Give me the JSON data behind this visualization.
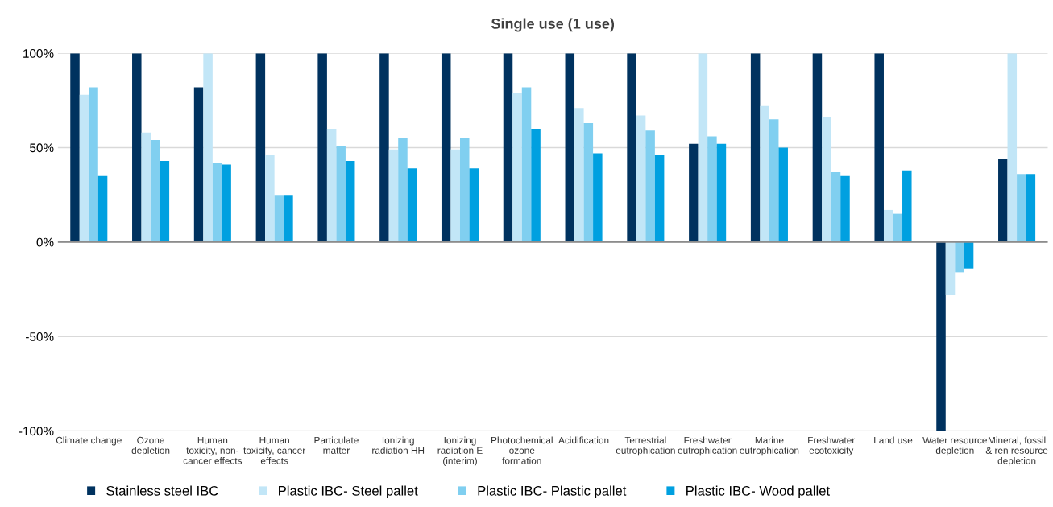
{
  "chart_data": {
    "type": "bar",
    "title": "Single use (1 use)",
    "categories": [
      "Climate change",
      "Ozone\ndepletion",
      "Human\ntoxicity, non-\ncancer effects",
      "Human\ntoxicity, cancer\neffects",
      "Particulate\nmatter",
      "Ionizing\nradiation HH",
      "Ionizing\nradiation E\n(interim)",
      "Photochemical\nozone\nformation",
      "Acidification",
      "Terrestrial\neutrophication",
      "Freshwater\neutrophication",
      "Marine\neutrophication",
      "Freshwater\necotoxicity",
      "Land use",
      "Water resource\ndepletion",
      "Mineral, fossil\n& ren resource\ndepletion"
    ],
    "series": [
      {
        "name": "Stainless steel IBC",
        "color": "#00325f",
        "values": [
          100,
          100,
          82,
          100,
          100,
          100,
          100,
          100,
          100,
          100,
          52,
          100,
          100,
          100,
          -100,
          44
        ]
      },
      {
        "name": "Plastic IBC- Steel pallet",
        "color": "#c2e6f7",
        "values": [
          78,
          58,
          100,
          46,
          60,
          49,
          49,
          79,
          71,
          67,
          100,
          72,
          66,
          17,
          -28,
          100
        ]
      },
      {
        "name": "Plastic IBC- Plastic pallet",
        "color": "#80cff0",
        "values": [
          82,
          54,
          42,
          25,
          51,
          55,
          55,
          82,
          63,
          59,
          56,
          65,
          37,
          15,
          -16,
          36
        ]
      },
      {
        "name": "Plastic IBC- Wood pallet",
        "color": "#00a0e0",
        "values": [
          35,
          43,
          41,
          25,
          43,
          39,
          39,
          60,
          47,
          46,
          52,
          50,
          35,
          38,
          -14,
          36
        ]
      }
    ],
    "ylim": [
      -100,
      100
    ],
    "yticks": [
      {
        "value": -100,
        "label": "-100%"
      },
      {
        "value": -50,
        "label": "-50%"
      },
      {
        "value": 0,
        "label": "0%"
      },
      {
        "value": 50,
        "label": "50%"
      },
      {
        "value": 100,
        "label": "100%"
      }
    ],
    "grid": "y",
    "legend": "bottom"
  }
}
